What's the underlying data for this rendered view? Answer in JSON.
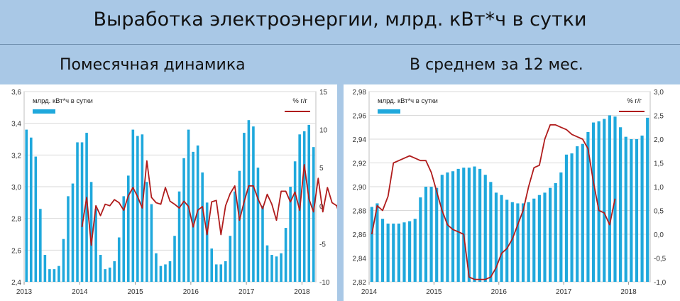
{
  "header": {
    "title": "Выработка электроэнергии, млрд. кВт*ч в сутки",
    "left_subtitle": "Помесячная динамика",
    "right_subtitle": "В среднем за 12 мес."
  },
  "colors": {
    "bars": "#1fa8dc",
    "line": "#b01c1c",
    "background": "#a9c8e6"
  },
  "chart_data": [
    {
      "type": "bar",
      "title": "Помесячная динамика",
      "legend": {
        "bars_label": "млрд. кВт*ч в сутки",
        "line_label": "% г/г",
        "position": "top"
      },
      "x_ticks": [
        "2013",
        "2014",
        "2015",
        "2016",
        "2017",
        "2018"
      ],
      "ylim_left": [
        2.4,
        3.6
      ],
      "yticks_left": [
        "2,4",
        "2,6",
        "2,8",
        "3,0",
        "3,2",
        "3,4",
        "3,6"
      ],
      "ylim_right": [
        -10,
        15
      ],
      "yticks_right": [
        "-10",
        "-5",
        "0",
        "5",
        "10",
        "15"
      ],
      "grid": true,
      "series": [
        {
          "name": "млрд. кВт*ч в сутки",
          "axis": "left",
          "type": "bar",
          "values": [
            3.36,
            3.31,
            3.19,
            2.86,
            2.57,
            2.48,
            2.48,
            2.5,
            2.67,
            2.94,
            3.02,
            3.28,
            3.28,
            3.34,
            3.03,
            2.86,
            2.57,
            2.48,
            2.49,
            2.53,
            2.68,
            2.94,
            3.07,
            3.36,
            3.32,
            3.33,
            3.03,
            2.89,
            2.58,
            2.5,
            2.51,
            2.53,
            2.69,
            2.97,
            3.18,
            3.36,
            3.22,
            3.26,
            3.09,
            2.9,
            2.61,
            2.51,
            2.51,
            2.53,
            2.69,
            2.97,
            3.1,
            3.34,
            3.42,
            3.38,
            3.12,
            2.88,
            2.63,
            2.57,
            2.56,
            2.58,
            2.74,
            3.0,
            3.16,
            3.33,
            3.35,
            3.39,
            3.25
          ]
        },
        {
          "name": "% г/г",
          "axis": "right",
          "type": "line",
          "start_index": 12,
          "values": [
            -2.8,
            1.1,
            -5.2,
            0,
            -1.3,
            0.2,
            0,
            0.8,
            0.4,
            -0.6,
            1.3,
            2.4,
            1.2,
            -0.3,
            5.9,
            1.1,
            0.4,
            0.2,
            2.4,
            0.6,
            0.2,
            -0.3,
            0.6,
            -0.1,
            -2.8,
            -0.6,
            -0.1,
            -3.8,
            0.5,
            0.7,
            -3.8,
            0,
            1.6,
            2.6,
            -1.9,
            0.5,
            2.6,
            2.6,
            0.9,
            -0.4,
            1.5,
            0.2,
            -1.9,
            1.9,
            1.9,
            0.5,
            1.8,
            -0.6,
            5.4,
            0.9,
            -0.8,
            3.6,
            -0.8,
            2.4,
            0.4,
            0,
            -2.0,
            0.6,
            1.2,
            -0.3,
            -2.1,
            1.8,
            6.0
          ]
        }
      ]
    },
    {
      "type": "bar",
      "title": "В среднем за 12 мес.",
      "legend": {
        "bars_label": "млрд. кВт*ч в сутки",
        "line_label": "% г/г",
        "position": "top"
      },
      "x_ticks": [
        "2014",
        "2015",
        "2016",
        "2017",
        "2018"
      ],
      "ylim_left": [
        2.82,
        2.98
      ],
      "yticks_left": [
        "2,82",
        "2,84",
        "2,86",
        "2,88",
        "2,90",
        "2,92",
        "2,94",
        "2,96",
        "2,98"
      ],
      "ylim_right": [
        -1.0,
        3.0
      ],
      "yticks_right": [
        "-1,0",
        "-0,5",
        "0,0",
        "0,5",
        "1,0",
        "1,5",
        "2,0",
        "2,5",
        "3,0"
      ],
      "grid": true,
      "series": [
        {
          "name": "млрд. кВт*ч в сутки",
          "axis": "left",
          "type": "bar",
          "values": [
            2.883,
            2.886,
            2.873,
            2.869,
            2.869,
            2.869,
            2.87,
            2.871,
            2.873,
            2.891,
            2.9,
            2.9,
            2.899,
            2.91,
            2.912,
            2.913,
            2.915,
            2.916,
            2.916,
            2.917,
            2.915,
            2.91,
            2.904,
            2.895,
            2.893,
            2.889,
            2.887,
            2.886,
            2.886,
            2.887,
            2.89,
            2.893,
            2.895,
            2.899,
            2.903,
            2.912,
            2.927,
            2.928,
            2.934,
            2.936,
            2.946,
            2.954,
            2.955,
            2.957,
            2.96,
            2.959,
            2.95,
            2.942,
            2.94,
            2.94,
            2.943,
            2.958
          ]
        },
        {
          "name": "% г/г",
          "axis": "right",
          "type": "line",
          "values": [
            0.0,
            0.6,
            0.5,
            0.8,
            1.5,
            1.55,
            1.6,
            1.65,
            1.6,
            1.55,
            1.55,
            1.3,
            0.9,
            0.5,
            0.2,
            0.1,
            0.05,
            0.0,
            -0.9,
            -0.95,
            -0.95,
            -0.95,
            -0.9,
            -0.7,
            -0.4,
            -0.3,
            -0.1,
            0.2,
            0.5,
            1.0,
            1.4,
            1.45,
            2.0,
            2.3,
            2.3,
            2.25,
            2.2,
            2.1,
            2.05,
            2.0,
            1.8,
            1.1,
            0.5,
            0.45,
            0.2,
            0.75
          ]
        }
      ]
    }
  ]
}
